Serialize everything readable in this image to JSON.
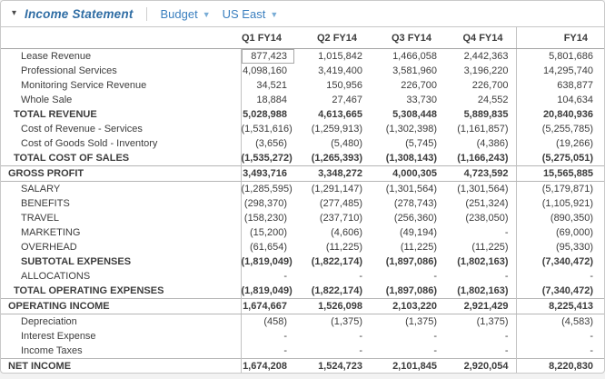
{
  "icons": {
    "collapse_caret": "▾",
    "dropdown_caret": "▼"
  },
  "toolbar": {
    "title": "Income Statement",
    "version_selector": {
      "label": "Budget"
    },
    "region_selector": {
      "label": "US East"
    }
  },
  "colors": {
    "title_blue": "#2f6da4",
    "selector_blue": "#3a7fbf",
    "caret_blue": "#7aadd6",
    "text": "#3c3c3c",
    "gridline": "#b5b5b5"
  },
  "table": {
    "columns": [
      "Q1 FY14",
      "Q2 FY14",
      "Q3 FY14",
      "Q4 FY14",
      "FY14"
    ],
    "rows": [
      {
        "label": "Lease Revenue",
        "indent": 2,
        "emphasis": false,
        "selected_col": 0,
        "values": [
          "877,423",
          "1,015,842",
          "1,466,058",
          "2,442,363",
          "5,801,686"
        ]
      },
      {
        "label": "Professional Services",
        "indent": 2,
        "emphasis": false,
        "values": [
          "4,098,160",
          "3,419,400",
          "3,581,960",
          "3,196,220",
          "14,295,740"
        ]
      },
      {
        "label": "Monitoring Service Revenue",
        "indent": 2,
        "emphasis": false,
        "values": [
          "34,521",
          "150,956",
          "226,700",
          "226,700",
          "638,877"
        ]
      },
      {
        "label": "Whole Sale",
        "indent": 2,
        "emphasis": false,
        "values": [
          "18,884",
          "27,467",
          "33,730",
          "24,552",
          "104,634"
        ]
      },
      {
        "label": "TOTAL REVENUE",
        "indent": 1,
        "emphasis": true,
        "values": [
          "5,028,988",
          "4,613,665",
          "5,308,448",
          "5,889,835",
          "20,840,936"
        ]
      },
      {
        "label": "Cost of Revenue - Services",
        "indent": 2,
        "emphasis": false,
        "values": [
          "(1,531,616)",
          "(1,259,913)",
          "(1,302,398)",
          "(1,161,857)",
          "(5,255,785)"
        ]
      },
      {
        "label": "Cost of Goods Sold - Inventory",
        "indent": 2,
        "emphasis": false,
        "values": [
          "(3,656)",
          "(5,480)",
          "(5,745)",
          "(4,386)",
          "(19,266)"
        ]
      },
      {
        "label": "TOTAL COST OF SALES",
        "indent": 1,
        "emphasis": true,
        "values": [
          "(1,535,272)",
          "(1,265,393)",
          "(1,308,143)",
          "(1,166,243)",
          "(5,275,051)"
        ]
      },
      {
        "label": "GROSS PROFIT",
        "indent": 0,
        "emphasis": true,
        "rule_above": true,
        "rule_below": true,
        "values": [
          "3,493,716",
          "3,348,272",
          "4,000,305",
          "4,723,592",
          "15,565,885"
        ]
      },
      {
        "label": "SALARY",
        "indent": 2,
        "emphasis": false,
        "values": [
          "(1,285,595)",
          "(1,291,147)",
          "(1,301,564)",
          "(1,301,564)",
          "(5,179,871)"
        ]
      },
      {
        "label": "BENEFITS",
        "indent": 2,
        "emphasis": false,
        "values": [
          "(298,370)",
          "(277,485)",
          "(278,743)",
          "(251,324)",
          "(1,105,921)"
        ]
      },
      {
        "label": "TRAVEL",
        "indent": 2,
        "emphasis": false,
        "values": [
          "(158,230)",
          "(237,710)",
          "(256,360)",
          "(238,050)",
          "(890,350)"
        ]
      },
      {
        "label": "MARKETING",
        "indent": 2,
        "emphasis": false,
        "values": [
          "(15,200)",
          "(4,606)",
          "(49,194)",
          "-",
          "(69,000)"
        ]
      },
      {
        "label": "OVERHEAD",
        "indent": 2,
        "emphasis": false,
        "values": [
          "(61,654)",
          "(11,225)",
          "(11,225)",
          "(11,225)",
          "(95,330)"
        ]
      },
      {
        "label": "SUBTOTAL EXPENSES",
        "indent": 2,
        "emphasis": true,
        "values": [
          "(1,819,049)",
          "(1,822,174)",
          "(1,897,086)",
          "(1,802,163)",
          "(7,340,472)"
        ]
      },
      {
        "label": "ALLOCATIONS",
        "indent": 2,
        "emphasis": false,
        "values": [
          "-",
          "-",
          "-",
          "-",
          "-"
        ]
      },
      {
        "label": "TOTAL OPERATING EXPENSES",
        "indent": 1,
        "emphasis": true,
        "values": [
          "(1,819,049)",
          "(1,822,174)",
          "(1,897,086)",
          "(1,802,163)",
          "(7,340,472)"
        ]
      },
      {
        "label": "OPERATING INCOME",
        "indent": 0,
        "emphasis": true,
        "rule_above": true,
        "rule_below": true,
        "values": [
          "1,674,667",
          "1,526,098",
          "2,103,220",
          "2,921,429",
          "8,225,413"
        ]
      },
      {
        "label": "Depreciation",
        "indent": 2,
        "emphasis": false,
        "values": [
          "(458)",
          "(1,375)",
          "(1,375)",
          "(1,375)",
          "(4,583)"
        ]
      },
      {
        "label": "Interest Expense",
        "indent": 2,
        "emphasis": false,
        "values": [
          "-",
          "-",
          "-",
          "-",
          "-"
        ]
      },
      {
        "label": "Income Taxes",
        "indent": 2,
        "emphasis": false,
        "values": [
          "-",
          "-",
          "-",
          "-",
          "-"
        ]
      },
      {
        "label": "NET INCOME",
        "indent": 0,
        "emphasis": true,
        "rule_above": true,
        "values": [
          "1,674,208",
          "1,524,723",
          "2,101,845",
          "2,920,054",
          "8,220,830"
        ]
      }
    ]
  }
}
